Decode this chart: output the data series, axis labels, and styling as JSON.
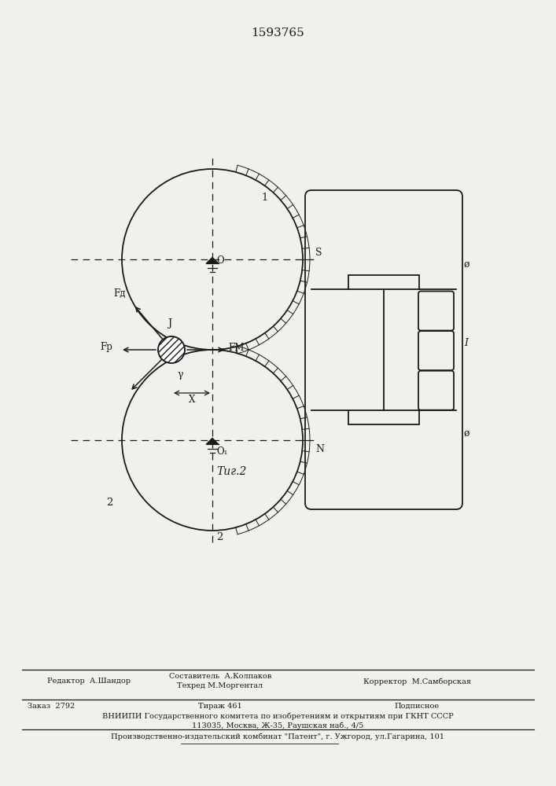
{
  "patent_number": "1593765",
  "fig_label": "Τиг.2",
  "bg_color": "#f2f0ed",
  "line_color": "#1a1a1a",
  "footer_line1_left": "Редактор  А.Шандор",
  "footer_line1_mid": "Составитель  А.Колпаков",
  "footer_line2_mid": "Техред М.Моргентал",
  "footer_line2_right": "Корректор  М.Самборская",
  "footer_zakaz": "Заказ  2792",
  "footer_tirazh": "Тираж 461",
  "footer_podpisnoe": "Подписное",
  "footer_vniipи": "ВНИИПИ Государственного комитета по изобретениям и открытиям при ГКНТ СССР",
  "footer_address": "113035, Москва, Ж-35, Раушская наб., 4/5",
  "footer_patent": "Производственно-издательский комбинат \"Патент\", г. Ужгород, ул.Гагарина, 101"
}
